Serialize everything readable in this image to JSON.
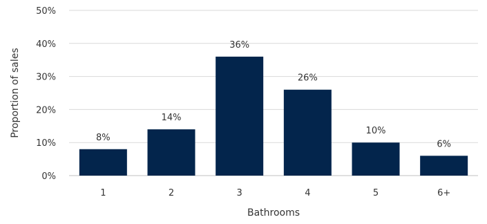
{
  "chart_data": {
    "type": "bar",
    "categories": [
      "1",
      "2",
      "3",
      "4",
      "5",
      "6+"
    ],
    "values": [
      8,
      14,
      36,
      26,
      10,
      6
    ],
    "value_labels": [
      "8%",
      "14%",
      "36%",
      "26%",
      "10%",
      "6%"
    ],
    "title": "",
    "xlabel": "Bathrooms",
    "ylabel": "Proportion of sales",
    "ylim": [
      0,
      50
    ],
    "yticks": [
      0,
      10,
      20,
      30,
      40,
      50
    ],
    "ytick_labels": [
      "0%",
      "10%",
      "20%",
      "30%",
      "40%",
      "50%"
    ],
    "grid": true,
    "legend": "none",
    "bar_color": "#03254c"
  }
}
